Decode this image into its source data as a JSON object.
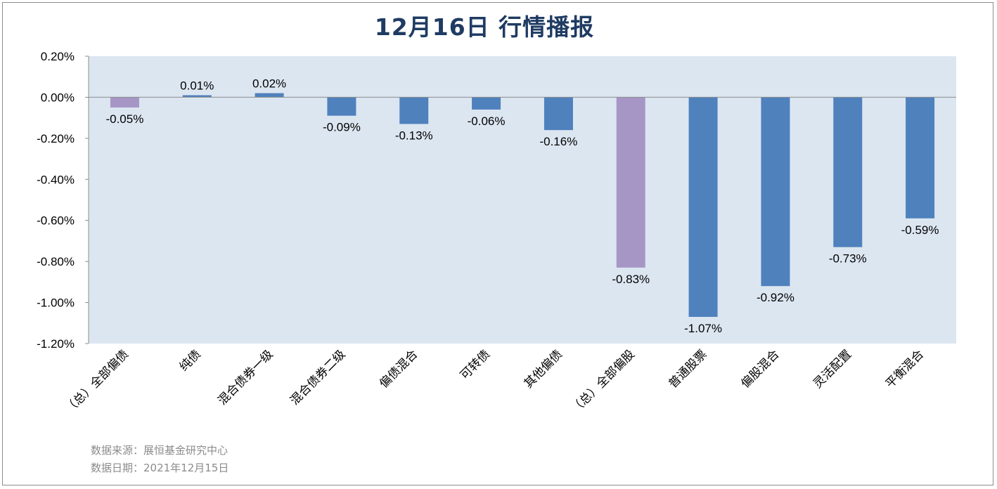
{
  "title": "12月16日  行情播报",
  "footer": {
    "source": "数据来源：展恒基金研究中心",
    "date": "数据日期：2021年12月15日"
  },
  "colors": {
    "background": "#dce6f1",
    "bar": "#4f81bd",
    "highlight": "#a696c5"
  },
  "chart_data": {
    "type": "bar",
    "categories": [
      "（总）全部偏债",
      "纯债",
      "混合债券一级",
      "混合债券二级",
      "偏债混合",
      "可转债",
      "其他偏债",
      "（总）全部偏股",
      "普通股票",
      "偏股混合",
      "灵活配置",
      "平衡混合"
    ],
    "values": [
      -0.05,
      0.01,
      0.02,
      -0.09,
      -0.13,
      -0.06,
      -0.16,
      -0.83,
      -1.07,
      -0.92,
      -0.73,
      -0.59
    ],
    "value_labels": [
      "-0.05%",
      "0.01%",
      "0.02%",
      "-0.09%",
      "-0.13%",
      "-0.06%",
      "-0.16%",
      "-0.83%",
      "-1.07%",
      "-0.92%",
      "-0.73%",
      "-0.59%"
    ],
    "highlight_categories": [
      "（总）全部偏债",
      "（总）全部偏股"
    ],
    "ylim": [
      -1.2,
      0.2
    ],
    "yticks": [
      0.2,
      0.0,
      -0.2,
      -0.4,
      -0.6,
      -0.8,
      -1.0,
      -1.2
    ],
    "ytick_labels": [
      "0.20%",
      "0.00%",
      "-0.20%",
      "-0.40%",
      "-0.60%",
      "-0.80%",
      "-1.00%",
      "-1.20%"
    ],
    "xlabel": "",
    "ylabel": "",
    "grid": false,
    "legend": "none"
  }
}
